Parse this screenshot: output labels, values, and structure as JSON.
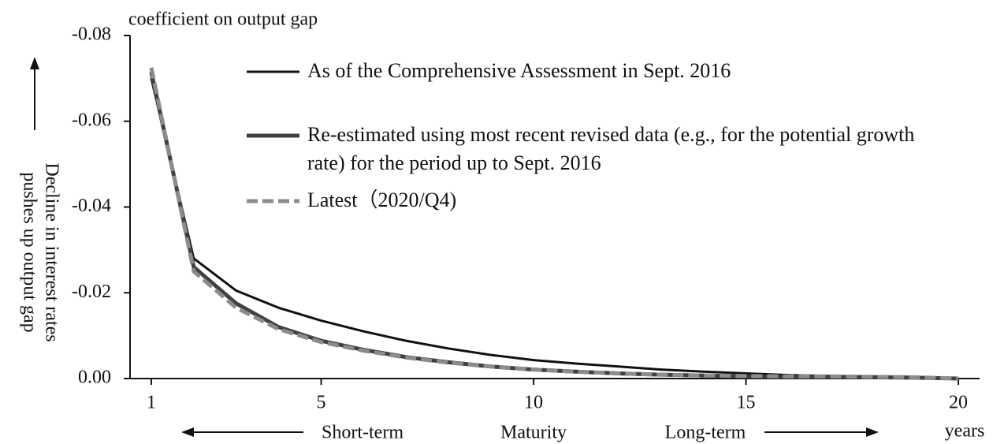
{
  "chart_data": {
    "type": "line",
    "y_title": "coefficient on output gap",
    "y_label": [
      "Decline in interest rates",
      "pushes up output gap"
    ],
    "x_annotations": [
      "Short-term",
      "Maturity",
      "Long-term"
    ],
    "x_unit": "years",
    "x": [
      1,
      2,
      3,
      4,
      5,
      6,
      7,
      8,
      9,
      10,
      11,
      12,
      13,
      14,
      15,
      16,
      17,
      18,
      19,
      20
    ],
    "xlim": [
      0.5,
      20.5
    ],
    "xticks": [
      1,
      5,
      10,
      15,
      20
    ],
    "ylim": [
      0,
      -0.08
    ],
    "yticks": [
      {
        "value": 0,
        "label": "0.00"
      },
      -0.02,
      -0.04,
      -0.06,
      -0.08
    ],
    "series": [
      {
        "name": "As of the Comprehensive Assessment in Sept. 2016",
        "color": "#111111",
        "width": 3,
        "dash": false,
        "values": [
          -0.07,
          -0.028,
          -0.0205,
          -0.0165,
          -0.0135,
          -0.011,
          -0.0088,
          -0.007,
          -0.0055,
          -0.0043,
          -0.0035,
          -0.0028,
          -0.0021,
          -0.0016,
          -0.0012,
          -0.0008,
          -0.0006,
          -0.0005,
          -0.0004,
          0
        ]
      },
      {
        "name": "Re-estimated using most recent revised data (e.g., for the potential growth rate) for the period up to Sept. 2016",
        "color": "#404040",
        "width": 5,
        "dash": false,
        "values": [
          -0.0715,
          -0.026,
          -0.0175,
          -0.012,
          -0.0088,
          -0.0067,
          -0.005,
          -0.0038,
          -0.0028,
          -0.0021,
          -0.0016,
          -0.0012,
          -0.0009,
          -0.0007,
          -0.0005,
          -0.0004,
          -0.0004,
          -0.0003,
          -0.0002,
          0
        ]
      },
      {
        "name": "Latest（2020/Q4)",
        "color": "#8c8c8c",
        "width": 5,
        "dash": true,
        "values": [
          -0.0725,
          -0.025,
          -0.0165,
          -0.0115,
          -0.0085,
          -0.0065,
          -0.0049,
          -0.0037,
          -0.0028,
          -0.0021,
          -0.0016,
          -0.0012,
          -0.0009,
          -0.0007,
          -0.0006,
          -0.0005,
          -0.0005,
          -0.0004,
          -0.0003,
          0
        ]
      }
    ]
  }
}
